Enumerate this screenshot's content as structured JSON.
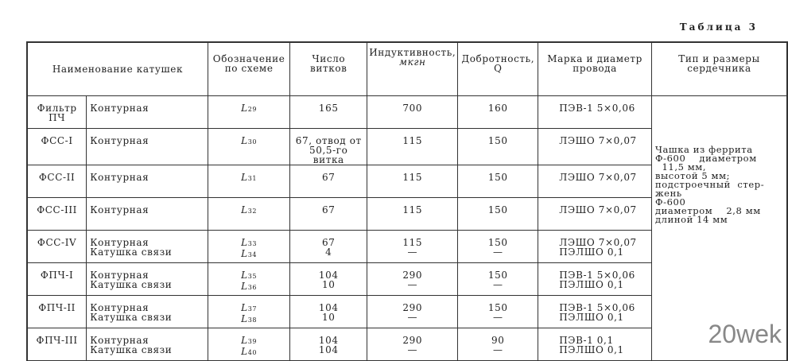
{
  "caption": "Таблица 3",
  "headers": {
    "name": "Наименование катушек",
    "designation": "Обозначение по схеме",
    "turns": "Число витков",
    "inductance": "Индуктивность,",
    "inductance_unit": "мкгн",
    "q": "Добротность, Q",
    "wire": "Марка и диаметр провода",
    "core": "Тип и размеры сердечника"
  },
  "rows": [
    {
      "group": "Фильтр ПЧ",
      "names": [
        "Контурная"
      ],
      "des": [
        [
          "L",
          "29"
        ]
      ],
      "turns": [
        "165"
      ],
      "ind": [
        "700"
      ],
      "q": [
        "160"
      ],
      "wire": [
        "ПЭВ-1 5×0,06"
      ]
    },
    {
      "group": "ФСС-I",
      "names": [
        "Контурная"
      ],
      "des": [
        [
          "L",
          "30"
        ]
      ],
      "turns": [
        "67, отвод от",
        "50,5-го витка"
      ],
      "ind": [
        "115"
      ],
      "q": [
        "150"
      ],
      "wire": [
        "ЛЭШО 7×0,07"
      ]
    },
    {
      "group": "ФСС-II",
      "names": [
        "Контурная"
      ],
      "des": [
        [
          "L",
          "31"
        ]
      ],
      "turns": [
        "67"
      ],
      "ind": [
        "115"
      ],
      "q": [
        "150"
      ],
      "wire": [
        "ЛЭШО 7×0,07"
      ]
    },
    {
      "group": "ФСС-III",
      "names": [
        "Контурная"
      ],
      "des": [
        [
          "L",
          "32"
        ]
      ],
      "turns": [
        "67"
      ],
      "ind": [
        "115"
      ],
      "q": [
        "150"
      ],
      "wire": [
        "ЛЭШО 7×0,07"
      ]
    },
    {
      "group": "ФСС-IV",
      "names": [
        "Контурная",
        "Катушка связи"
      ],
      "des": [
        [
          "L",
          "33"
        ],
        [
          "L",
          "34"
        ]
      ],
      "turns": [
        "67",
        "4"
      ],
      "ind": [
        "115",
        "—"
      ],
      "q": [
        "150",
        "—"
      ],
      "wire": [
        "ЛЭШО 7×0,07",
        "ПЭЛШО 0,1"
      ]
    },
    {
      "group": "ФПЧ-I",
      "names": [
        "Контурная",
        "Катушка связи"
      ],
      "des": [
        [
          "L",
          "35"
        ],
        [
          "L",
          "36"
        ]
      ],
      "turns": [
        "104",
        "10"
      ],
      "ind": [
        "290",
        "—"
      ],
      "q": [
        "150",
        "—"
      ],
      "wire": [
        "ПЭВ-1 5×0,06",
        "ПЭЛШО 0,1"
      ]
    },
    {
      "group": "ФПЧ-II",
      "names": [
        "Контурная",
        "Катушка связи"
      ],
      "des": [
        [
          "L",
          "37"
        ],
        [
          "L",
          "38"
        ]
      ],
      "turns": [
        "104",
        "10"
      ],
      "ind": [
        "290",
        "—"
      ],
      "q": [
        "150",
        "—"
      ],
      "wire": [
        "ПЭВ-1 5×0,06",
        "ПЭЛШО 0,1"
      ]
    },
    {
      "group": "ФПЧ-III",
      "names": [
        "Контурная",
        "Катушка связи"
      ],
      "des": [
        [
          "L",
          "39"
        ],
        [
          "L",
          "40"
        ]
      ],
      "turns": [
        "104",
        "104"
      ],
      "ind": [
        "290",
        "—"
      ],
      "q": [
        "90",
        "—"
      ],
      "wire": [
        "ПЭВ-1 0,1",
        "ПЭЛШО 0,1"
      ]
    }
  ],
  "core_lines": [
    "Чашка из феррита",
    "Ф-600    диаметром",
    "  11,5 мм,",
    "высотой 5 мм;",
    "подстроечный  стер-",
    "жень",
    "Ф-600",
    "диаметром    2,8 мм",
    "длиной 14 мм"
  ],
  "watermark": "20wek"
}
